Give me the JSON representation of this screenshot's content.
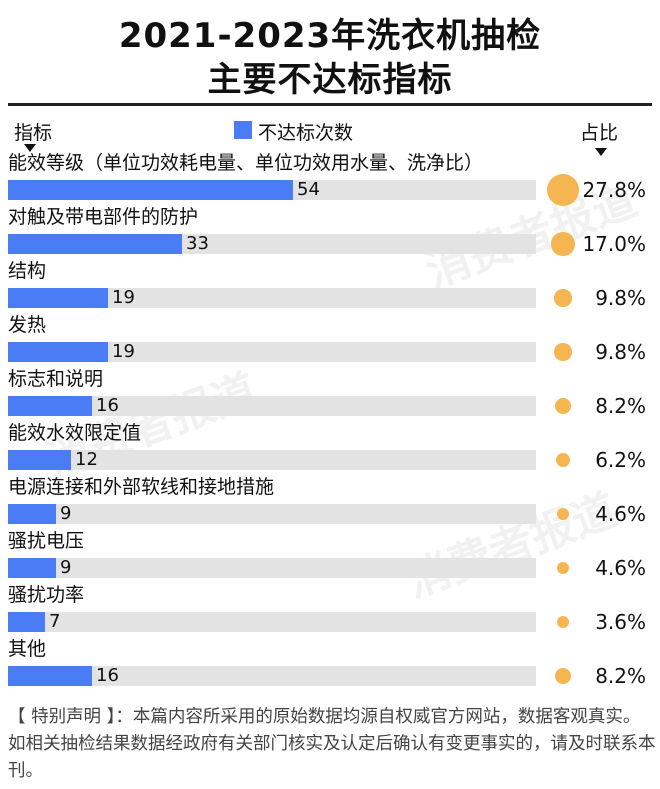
{
  "title_line1": "2021-2023年洗衣机抽检",
  "title_line2": "主要不达标指标",
  "header_indicator": "指标",
  "header_legend": "不达标次数",
  "header_share": "占比",
  "watermark": "消费者报道",
  "colors": {
    "bar": "#4a7df5",
    "dot": "#f5b652",
    "track": "#e3e3e3"
  },
  "chart_data": {
    "type": "bar",
    "categories": [
      "能效等级（单位功效耗电量、单位功效用水量、洗净比）",
      "对触及带电部件的防护",
      "结构",
      "发热",
      "标志和说明",
      "能效水效限定值",
      "电源连接和外部软线和接地措施",
      "骚扰电压",
      "骚扰功率",
      "其他"
    ],
    "series": [
      {
        "name": "不达标次数",
        "values": [
          54,
          33,
          19,
          19,
          16,
          12,
          9,
          9,
          7,
          16
        ]
      }
    ],
    "shares": [
      "27.8%",
      "17.0%",
      "9.8%",
      "9.8%",
      "8.2%",
      "6.2%",
      "4.6%",
      "4.6%",
      "3.6%",
      "8.2%"
    ],
    "share_values": [
      27.8,
      17.0,
      9.8,
      9.8,
      8.2,
      6.2,
      4.6,
      4.6,
      3.6,
      8.2
    ],
    "xlim": [
      0,
      100
    ],
    "orientation": "horizontal"
  },
  "footer": "【 特别声明 】：本篇内容所采用的原始数据均源自权威官方网站，数据客观真实。如相关抽检结果数据经政府有关部门核实及认定后确认有变更事实的，请及时联系本刊。"
}
